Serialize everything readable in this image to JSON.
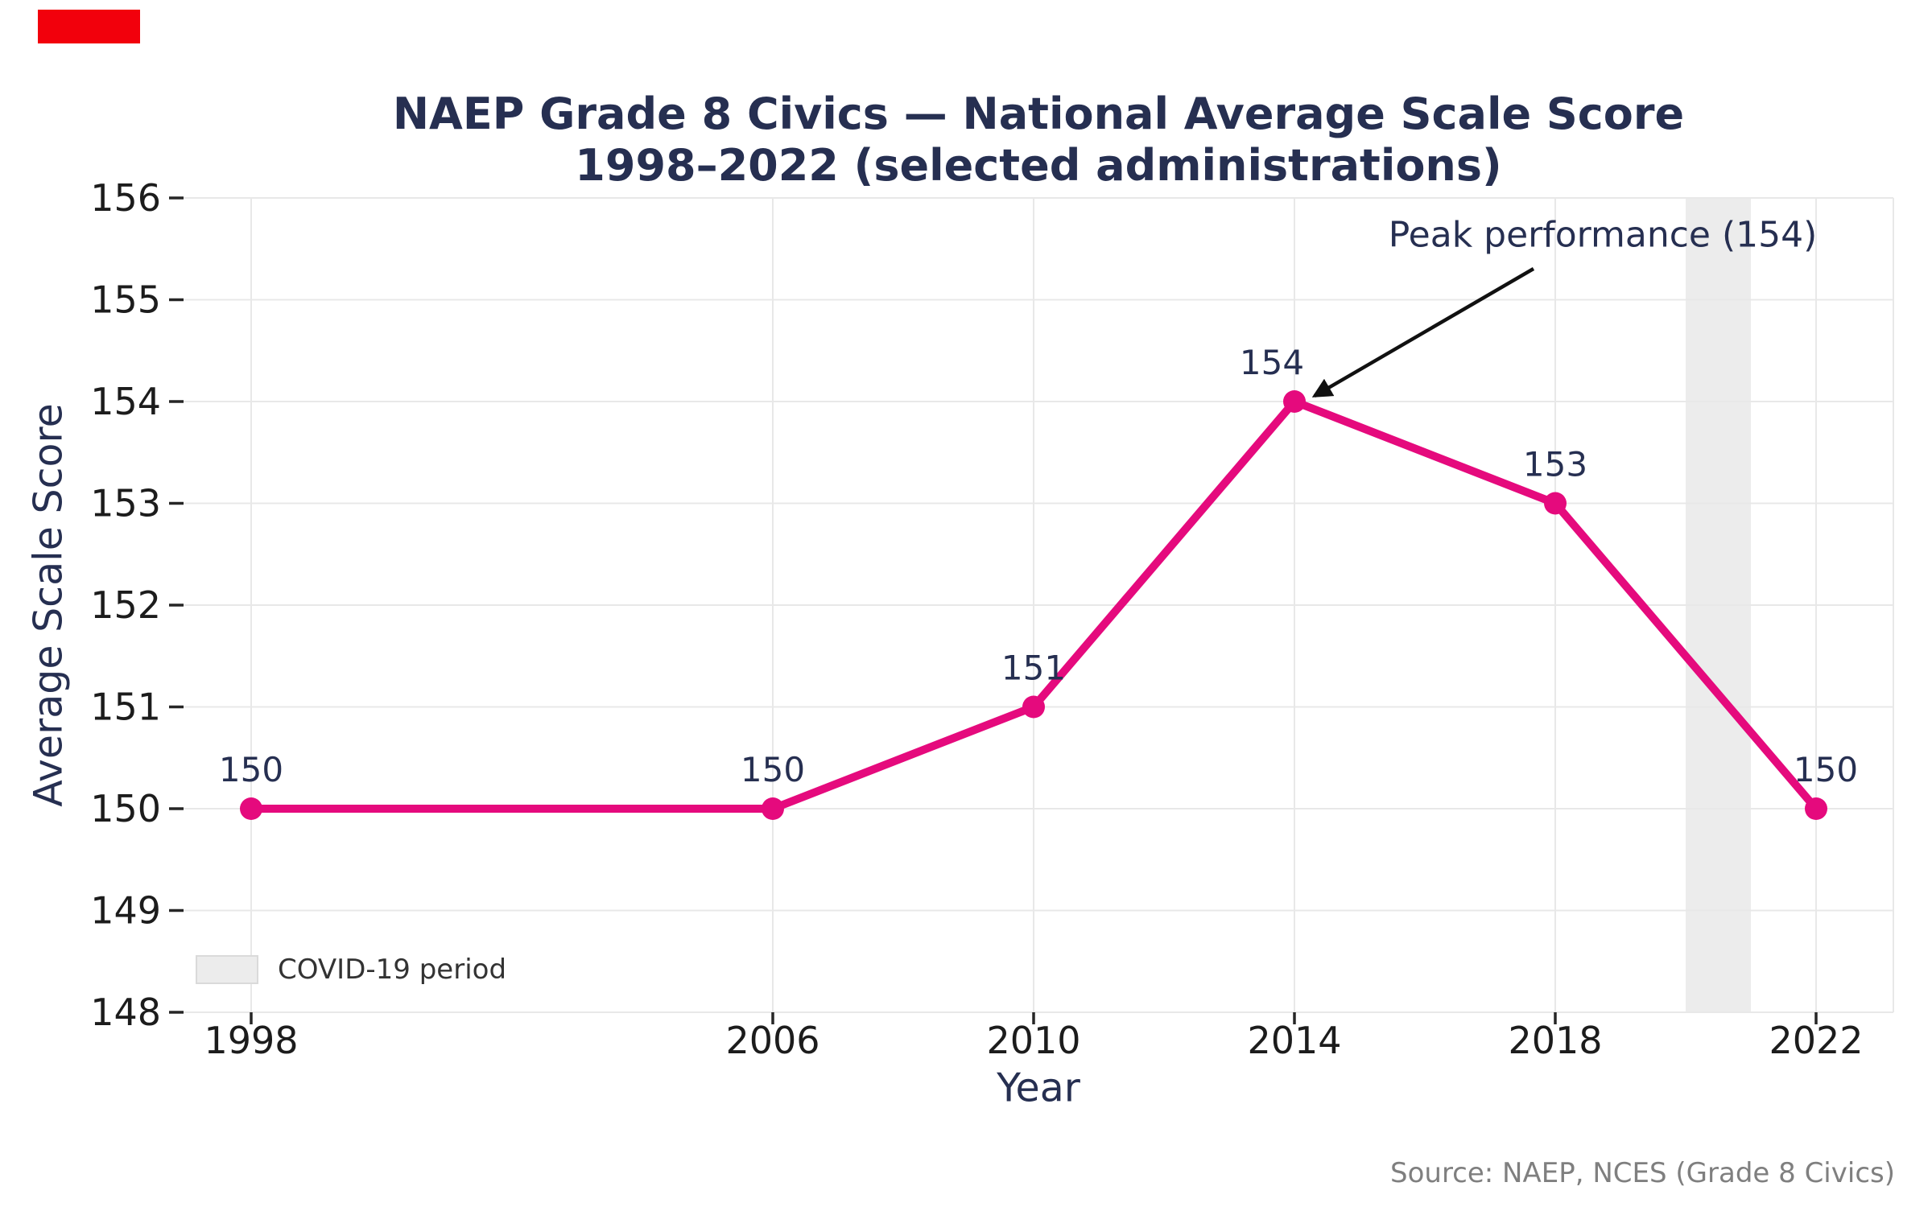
{
  "red_marker": {
    "color": "#f2000c"
  },
  "chart_data": {
    "type": "line",
    "title_line1": "NAEP Grade 8 Civics — National Average Scale Score",
    "title_line2": "1998–2022 (selected administrations)",
    "xlabel": "Year",
    "ylabel": "Average Scale Score",
    "x": [
      1998,
      2006,
      2010,
      2014,
      2018,
      2022
    ],
    "values": [
      150,
      150,
      151,
      154,
      153,
      150
    ],
    "point_labels": [
      "150",
      "150",
      "151",
      "154",
      "153",
      "150"
    ],
    "xticks": [
      1998,
      2006,
      2010,
      2014,
      2018,
      2022
    ],
    "yticks": [
      148,
      149,
      150,
      151,
      152,
      153,
      154,
      155,
      156
    ],
    "ylim": [
      148,
      156
    ],
    "xlim": [
      1997,
      2023.2
    ],
    "grid": true,
    "legend_position": "lower left",
    "line_color": "#e50a7d",
    "band_color": "#ececec",
    "grid_color": "#e8e8e8",
    "tick_color": "#262626",
    "accent_color": "#262f51",
    "annotation": {
      "text": "Peak performance (154)",
      "target_x": 2014,
      "target_y": 154
    },
    "covid_band": {
      "x_start": 2020,
      "x_end": 2021,
      "label": "COVID-19 period"
    },
    "source": "Source: NAEP, NCES (Grade 8 Civics)"
  }
}
